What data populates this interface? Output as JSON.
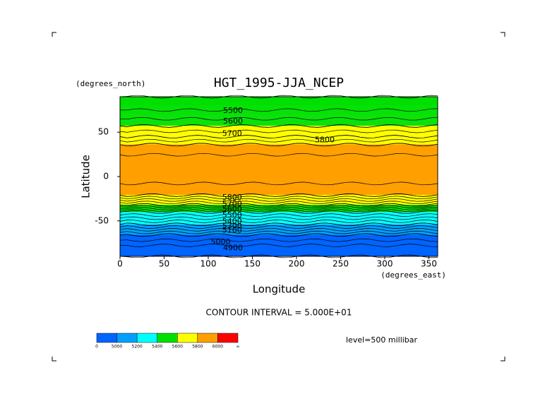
{
  "chart_data": {
    "type": "contour",
    "title": "HGT_1995-JJA_NCEP",
    "x_label": "Longitude",
    "x_units": "(degrees_east)",
    "y_label": "Latitude",
    "y_units": "(degrees_north)",
    "xlim": [
      0,
      360
    ],
    "xticks": [
      0,
      50,
      100,
      150,
      200,
      250,
      300,
      350
    ],
    "ylim": [
      -90,
      90
    ],
    "yticks": [
      -50,
      0,
      50
    ],
    "contour_interval_text": "CONTOUR INTERVAL = 5.000E+01",
    "contour_step": 50,
    "level_text": "level=500 millibar",
    "zonal_profile": {
      "lat": [
        90,
        80,
        70,
        57,
        45,
        36,
        20,
        0,
        -21,
        -32,
        -40,
        -54,
        -66,
        -80,
        -90
      ],
      "hgt": [
        5450,
        5480,
        5520,
        5600,
        5700,
        5800,
        5870,
        5880,
        5800,
        5600,
        5400,
        5200,
        5000,
        4880,
        4850
      ]
    },
    "contour_labels": [
      {
        "value": 5500,
        "lon": 128,
        "lat": 74
      },
      {
        "value": 5600,
        "lon": 128,
        "lat": 62
      },
      {
        "value": 5700,
        "lon": 127,
        "lat": 48
      },
      {
        "value": 5800,
        "lon": 232,
        "lat": 41
      },
      {
        "value": 5800,
        "lon": 127,
        "lat": -24
      },
      {
        "value": 5700,
        "lon": 127,
        "lat": -31
      },
      {
        "value": 5600,
        "lon": 127,
        "lat": -37
      },
      {
        "value": 5500,
        "lon": 127,
        "lat": -44
      },
      {
        "value": 5400,
        "lon": 127,
        "lat": -51
      },
      {
        "value": 5300,
        "lon": 127,
        "lat": -56
      },
      {
        "value": 5100,
        "lon": 127,
        "lat": -61
      },
      {
        "value": 5000,
        "lon": 114,
        "lat": -74
      },
      {
        "value": 4900,
        "lon": 128,
        "lat": -81
      }
    ],
    "colorbar": {
      "levels": [
        5000,
        5200,
        5400,
        5600,
        5800,
        6000
      ],
      "colors": [
        "#0064ff",
        "#00a0ff",
        "#00ffff",
        "#00e000",
        "#ffff00",
        "#ffa000",
        "#ff0000"
      ],
      "low_label": "0",
      "high_label": "∞"
    }
  }
}
